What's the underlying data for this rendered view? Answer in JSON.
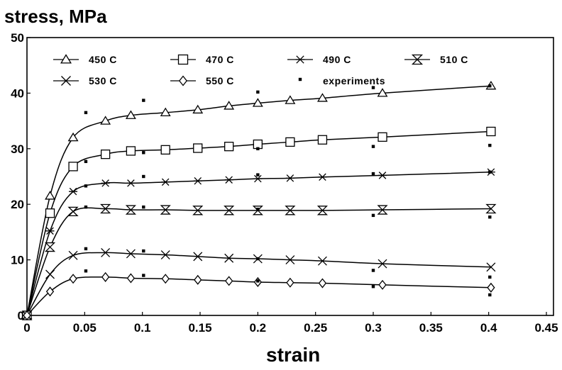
{
  "chart_data": {
    "type": "line",
    "title": "",
    "xlabel": "strain",
    "ylabel": "stress, MPa",
    "xlim": [
      0,
      0.45
    ],
    "ylim": [
      0,
      50
    ],
    "xticks": [
      0,
      0.05,
      0.1,
      0.15,
      0.2,
      0.25,
      0.3,
      0.35,
      0.4,
      0.45
    ],
    "xtick_labels": [
      "0",
      "0.05",
      "0.1",
      "0.15",
      "0.2",
      "0.25",
      "0.3",
      "0.35",
      "0.4",
      "0.45"
    ],
    "yticks": [
      0,
      10,
      20,
      30,
      40,
      50
    ],
    "ytick_labels": [
      "0",
      "10",
      "20",
      "30",
      "40",
      "50"
    ],
    "grid": false,
    "legend_position": "top",
    "series": [
      {
        "name": "450 C",
        "marker": "triangle",
        "x": [
          0,
          0.02,
          0.04,
          0.068,
          0.09,
          0.12,
          0.148,
          0.175,
          0.2,
          0.228,
          0.256,
          0.308,
          0.402
        ],
        "y": [
          0,
          21.5,
          32,
          35,
          36,
          36.5,
          37,
          37.7,
          38.2,
          38.7,
          39.1,
          40,
          41.3
        ]
      },
      {
        "name": "470 C",
        "marker": "square",
        "x": [
          0,
          0.02,
          0.04,
          0.068,
          0.09,
          0.12,
          0.148,
          0.175,
          0.2,
          0.228,
          0.256,
          0.308,
          0.402
        ],
        "y": [
          0,
          18.4,
          26.8,
          29,
          29.6,
          29.8,
          30.1,
          30.4,
          30.8,
          31.2,
          31.6,
          32.1,
          33.1
        ]
      },
      {
        "name": "490 C",
        "marker": "asterisk",
        "x": [
          0,
          0.02,
          0.04,
          0.068,
          0.09,
          0.12,
          0.148,
          0.175,
          0.2,
          0.228,
          0.256,
          0.308,
          0.402
        ],
        "y": [
          0,
          15.2,
          22.3,
          23.8,
          23.8,
          24,
          24.2,
          24.4,
          24.6,
          24.7,
          24.9,
          25.2,
          25.8
        ]
      },
      {
        "name": "510 C",
        "marker": "hourglass",
        "x": [
          0,
          0.02,
          0.04,
          0.068,
          0.09,
          0.12,
          0.148,
          0.175,
          0.2,
          0.228,
          0.256,
          0.308,
          0.402
        ],
        "y": [
          0,
          12.3,
          18.7,
          19.2,
          19,
          19,
          18.9,
          18.9,
          18.9,
          18.9,
          18.9,
          19,
          19.2
        ]
      },
      {
        "name": "530 C",
        "marker": "x",
        "x": [
          0,
          0.02,
          0.04,
          0.068,
          0.09,
          0.12,
          0.148,
          0.175,
          0.2,
          0.228,
          0.256,
          0.308,
          0.402
        ],
        "y": [
          0,
          7.4,
          10.8,
          11.3,
          11.1,
          10.9,
          10.6,
          10.3,
          10.2,
          10,
          9.8,
          9.3,
          8.7
        ]
      },
      {
        "name": "550 C",
        "marker": "diamond",
        "x": [
          0,
          0.02,
          0.04,
          0.068,
          0.09,
          0.12,
          0.148,
          0.175,
          0.2,
          0.228,
          0.256,
          0.308,
          0.402
        ],
        "y": [
          0,
          4.3,
          6.6,
          6.9,
          6.7,
          6.6,
          6.4,
          6.2,
          6,
          5.9,
          5.8,
          5.5,
          5
        ]
      }
    ],
    "experiments": {
      "name": "experiments",
      "marker": "small-square",
      "x": [
        0.051,
        0.051,
        0.051,
        0.051,
        0.051,
        0.051,
        0.101,
        0.101,
        0.101,
        0.101,
        0.101,
        0.101,
        0.2,
        0.2,
        0.2,
        0.2,
        0.2,
        0.2,
        0.3,
        0.3,
        0.3,
        0.3,
        0.3,
        0.3,
        0.401,
        0.401,
        0.401,
        0.401,
        0.401,
        0.401
      ],
      "y": [
        36.5,
        27.7,
        23.3,
        19.5,
        12,
        8,
        38.7,
        29.3,
        25,
        19.5,
        11.6,
        7.2,
        40.2,
        30,
        25.3,
        19.1,
        10.2,
        6.2,
        41,
        30.4,
        25.5,
        18,
        8.1,
        5.2,
        41.3,
        30.6,
        25.8,
        17.7,
        6.9,
        3.7
      ]
    }
  }
}
